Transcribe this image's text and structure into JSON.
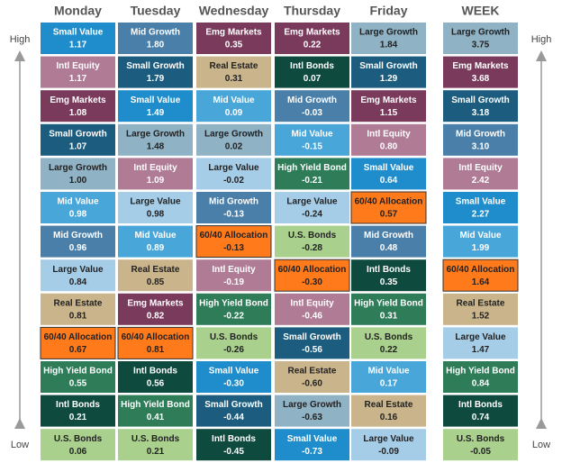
{
  "side": {
    "high": "High",
    "low": "Low"
  },
  "columns": [
    {
      "header": "Monday",
      "cells": [
        [
          "Small Value",
          "1.17",
          "#1f8dcb"
        ],
        [
          "Intl Equity",
          "1.17",
          "#b07b95"
        ],
        [
          "Emg Markets",
          "1.08",
          "#7a3a5c"
        ],
        [
          "Small Growth",
          "1.07",
          "#1c5c7e"
        ],
        [
          "Large Growth",
          "1.00",
          "#8fb2c5"
        ],
        [
          "Mid Value",
          "0.98",
          "#49a6d8"
        ],
        [
          "Mid Growth",
          "0.96",
          "#4a7fa9"
        ],
        [
          "Large Value",
          "0.84",
          "#a6cde8"
        ],
        [
          "Real Estate",
          "0.81",
          "#c9b48b"
        ],
        [
          "60/40 Allocation",
          "0.67",
          "#ff7a1a"
        ],
        [
          "High Yield Bond",
          "0.55",
          "#2f7d58"
        ],
        [
          "Intl Bonds",
          "0.21",
          "#0f4a3f"
        ],
        [
          "U.S. Bonds",
          "0.06",
          "#a9d08d"
        ]
      ]
    },
    {
      "header": "Tuesday",
      "cells": [
        [
          "Mid Growth",
          "1.80",
          "#4a7fa9"
        ],
        [
          "Small Growth",
          "1.79",
          "#1c5c7e"
        ],
        [
          "Small Value",
          "1.49",
          "#1f8dcb"
        ],
        [
          "Large Growth",
          "1.48",
          "#8fb2c5"
        ],
        [
          "Intl Equity",
          "1.09",
          "#b07b95"
        ],
        [
          "Large Value",
          "0.98",
          "#a6cde8"
        ],
        [
          "Mid Value",
          "0.89",
          "#49a6d8"
        ],
        [
          "Real Estate",
          "0.85",
          "#c9b48b"
        ],
        [
          "Emg Markets",
          "0.82",
          "#7a3a5c"
        ],
        [
          "60/40 Allocation",
          "0.81",
          "#ff7a1a"
        ],
        [
          "Intl Bonds",
          "0.56",
          "#0f4a3f"
        ],
        [
          "High Yield Bond",
          "0.41",
          "#2f7d58"
        ],
        [
          "U.S. Bonds",
          "0.21",
          "#a9d08d"
        ]
      ]
    },
    {
      "header": "Wednesday",
      "cells": [
        [
          "Emg Markets",
          "0.35",
          "#7a3a5c"
        ],
        [
          "Real Estate",
          "0.31",
          "#c9b48b"
        ],
        [
          "Mid Value",
          "0.09",
          "#49a6d8"
        ],
        [
          "Large Growth",
          "0.02",
          "#8fb2c5"
        ],
        [
          "Large Value",
          "-0.02",
          "#a6cde8"
        ],
        [
          "Mid Growth",
          "-0.13",
          "#4a7fa9"
        ],
        [
          "60/40 Allocation",
          "-0.13",
          "#ff7a1a"
        ],
        [
          "Intl Equity",
          "-0.19",
          "#b07b95"
        ],
        [
          "High Yield Bond",
          "-0.22",
          "#2f7d58"
        ],
        [
          "U.S. Bonds",
          "-0.26",
          "#a9d08d"
        ],
        [
          "Small Value",
          "-0.30",
          "#1f8dcb"
        ],
        [
          "Small Growth",
          "-0.44",
          "#1c5c7e"
        ],
        [
          "Intl Bonds",
          "-0.45",
          "#0f4a3f"
        ]
      ]
    },
    {
      "header": "Thursday",
      "cells": [
        [
          "Emg Markets",
          "0.22",
          "#7a3a5c"
        ],
        [
          "Intl Bonds",
          "0.07",
          "#0f4a3f"
        ],
        [
          "Mid Growth",
          "-0.03",
          "#4a7fa9"
        ],
        [
          "Mid Value",
          "-0.15",
          "#49a6d8"
        ],
        [
          "High Yield Bond",
          "-0.21",
          "#2f7d58"
        ],
        [
          "Large Value",
          "-0.24",
          "#a6cde8"
        ],
        [
          "U.S. Bonds",
          "-0.28",
          "#a9d08d"
        ],
        [
          "60/40 Allocation",
          "-0.30",
          "#ff7a1a"
        ],
        [
          "Intl Equity",
          "-0.46",
          "#b07b95"
        ],
        [
          "Small Growth",
          "-0.56",
          "#1c5c7e"
        ],
        [
          "Real Estate",
          "-0.60",
          "#c9b48b"
        ],
        [
          "Large Growth",
          "-0.63",
          "#8fb2c5"
        ],
        [
          "Small Value",
          "-0.73",
          "#1f8dcb"
        ]
      ]
    },
    {
      "header": "Friday",
      "cells": [
        [
          "Large Growth",
          "1.84",
          "#8fb2c5"
        ],
        [
          "Small Growth",
          "1.29",
          "#1c5c7e"
        ],
        [
          "Emg Markets",
          "1.15",
          "#7a3a5c"
        ],
        [
          "Intl Equity",
          "0.80",
          "#b07b95"
        ],
        [
          "Small Value",
          "0.64",
          "#1f8dcb"
        ],
        [
          "60/40 Allocation",
          "0.57",
          "#ff7a1a"
        ],
        [
          "Mid Growth",
          "0.48",
          "#4a7fa9"
        ],
        [
          "Intl Bonds",
          "0.35",
          "#0f4a3f"
        ],
        [
          "High Yield Bond",
          "0.31",
          "#2f7d58"
        ],
        [
          "U.S. Bonds",
          "0.22",
          "#a9d08d"
        ],
        [
          "Mid Value",
          "0.17",
          "#49a6d8"
        ],
        [
          "Real Estate",
          "0.16",
          "#c9b48b"
        ],
        [
          "Large Value",
          "-0.09",
          "#a6cde8"
        ]
      ]
    },
    {
      "header": "WEEK",
      "cells": [
        [
          "Large Growth",
          "3.75",
          "#8fb2c5"
        ],
        [
          "Emg Markets",
          "3.68",
          "#7a3a5c"
        ],
        [
          "Small Growth",
          "3.18",
          "#1c5c7e"
        ],
        [
          "Mid Growth",
          "3.10",
          "#4a7fa9"
        ],
        [
          "Intl Equity",
          "2.42",
          "#b07b95"
        ],
        [
          "Small Value",
          "2.27",
          "#1f8dcb"
        ],
        [
          "Mid Value",
          "1.99",
          "#49a6d8"
        ],
        [
          "60/40 Allocation",
          "1.64",
          "#ff7a1a"
        ],
        [
          "Real Estate",
          "1.52",
          "#c9b48b"
        ],
        [
          "Large Value",
          "1.47",
          "#a6cde8"
        ],
        [
          "High Yield Bond",
          "0.84",
          "#2f7d58"
        ],
        [
          "Intl Bonds",
          "0.74",
          "#0f4a3f"
        ],
        [
          "U.S. Bonds",
          "-0.05",
          "#a9d08d"
        ]
      ]
    }
  ]
}
